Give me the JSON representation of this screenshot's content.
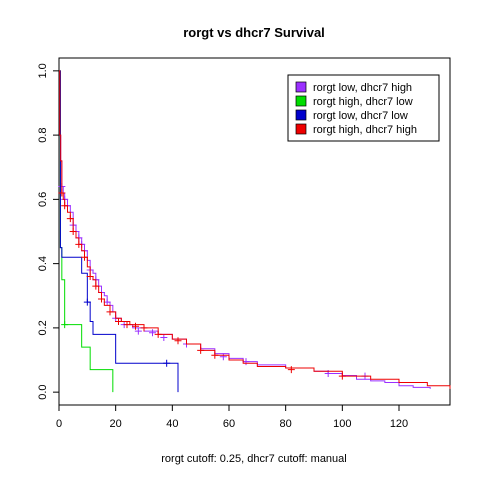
{
  "chart_data": {
    "type": "line",
    "title": "rorgt vs dhcr7 Survival",
    "xlabel": "rorgt cutoff: 0.25, dhcr7 cutoff: manual",
    "ylabel": "",
    "xlim": [
      0,
      138
    ],
    "ylim": [
      -0.04,
      1.04
    ],
    "xticks": [
      0,
      20,
      40,
      60,
      80,
      100,
      120
    ],
    "yticks": [
      0.0,
      0.2,
      0.4,
      0.6,
      0.8,
      1.0
    ],
    "xtick_labels": [
      "0",
      "20",
      "40",
      "60",
      "80",
      "100",
      "120"
    ],
    "ytick_labels": [
      "0.0",
      "0.2",
      "0.4",
      "0.6",
      "0.8",
      "1.0"
    ],
    "grid": false,
    "legend_position": "top-right",
    "series": [
      {
        "name": "rorgt low, dhcr7 high",
        "color": "#9b30ff",
        "x": [
          0,
          0.3,
          0.6,
          1,
          1.5,
          2,
          3,
          4,
          5,
          6,
          7,
          8,
          9,
          10,
          11,
          12,
          13,
          14,
          15,
          16,
          17,
          18,
          19,
          20,
          22,
          24,
          26,
          30,
          35,
          40,
          45,
          50,
          55,
          60,
          65,
          70,
          80,
          90,
          95,
          100,
          105,
          110,
          115,
          120,
          125,
          131
        ],
        "y": [
          1.0,
          0.8,
          0.72,
          0.64,
          0.62,
          0.6,
          0.58,
          0.56,
          0.52,
          0.5,
          0.48,
          0.46,
          0.44,
          0.41,
          0.38,
          0.37,
          0.35,
          0.33,
          0.31,
          0.3,
          0.28,
          0.27,
          0.25,
          0.23,
          0.22,
          0.21,
          0.2,
          0.19,
          0.18,
          0.165,
          0.15,
          0.135,
          0.12,
          0.105,
          0.095,
          0.085,
          0.075,
          0.065,
          0.058,
          0.052,
          0.04,
          0.035,
          0.03,
          0.02,
          0.015,
          0.01
        ],
        "censor_x": [
          1,
          2,
          3,
          5,
          6,
          7,
          8,
          9,
          11,
          13,
          15,
          17,
          20,
          23,
          28,
          33,
          37,
          45,
          58,
          66,
          95,
          108
        ],
        "censor_y": [
          0.64,
          0.6,
          0.58,
          0.52,
          0.5,
          0.48,
          0.46,
          0.44,
          0.38,
          0.35,
          0.31,
          0.28,
          0.23,
          0.21,
          0.19,
          0.185,
          0.17,
          0.15,
          0.11,
          0.095,
          0.058,
          0.05
        ]
      },
      {
        "name": "rorgt high, dhcr7 low",
        "color": "#00dd00",
        "x": [
          0,
          0.5,
          1,
          2,
          8,
          11,
          19
        ],
        "y": [
          1.0,
          0.45,
          0.35,
          0.21,
          0.14,
          0.07,
          0.0
        ],
        "censor_x": [
          2
        ],
        "censor_y": [
          0.21
        ]
      },
      {
        "name": "rorgt low, dhcr7 low",
        "color": "#0000cc",
        "x": [
          0,
          0.5,
          1,
          2,
          6,
          8,
          10,
          11,
          12,
          20,
          42
        ],
        "y": [
          1.0,
          0.45,
          0.42,
          0.42,
          0.42,
          0.37,
          0.28,
          0.22,
          0.18,
          0.09,
          0.0
        ],
        "censor_x": [
          10,
          38
        ],
        "censor_y": [
          0.28,
          0.09
        ]
      },
      {
        "name": "rorgt high, dhcr7 high",
        "color": "#ee0000",
        "x": [
          0,
          0.3,
          0.6,
          1,
          1.5,
          2,
          3,
          4,
          5,
          6,
          7,
          8,
          9,
          10,
          11,
          12,
          13,
          14,
          15,
          16,
          18,
          20,
          22,
          25,
          30,
          35,
          40,
          45,
          50,
          55,
          60,
          65,
          70,
          80,
          90,
          100,
          110,
          120,
          130,
          138
        ],
        "y": [
          1.0,
          0.8,
          0.72,
          0.62,
          0.6,
          0.58,
          0.56,
          0.54,
          0.5,
          0.48,
          0.46,
          0.44,
          0.42,
          0.39,
          0.36,
          0.35,
          0.33,
          0.31,
          0.29,
          0.27,
          0.25,
          0.23,
          0.22,
          0.21,
          0.2,
          0.18,
          0.165,
          0.15,
          0.13,
          0.115,
          0.1,
          0.09,
          0.08,
          0.075,
          0.065,
          0.05,
          0.04,
          0.03,
          0.02,
          0.01
        ],
        "censor_x": [
          1,
          2,
          4,
          5,
          7,
          9,
          11,
          13,
          15,
          18,
          21,
          24,
          27,
          30,
          35,
          42,
          50,
          55,
          82,
          100
        ],
        "censor_y": [
          0.62,
          0.58,
          0.54,
          0.5,
          0.46,
          0.42,
          0.36,
          0.33,
          0.29,
          0.25,
          0.22,
          0.21,
          0.205,
          0.2,
          0.18,
          0.16,
          0.13,
          0.115,
          0.07,
          0.05
        ]
      }
    ]
  }
}
